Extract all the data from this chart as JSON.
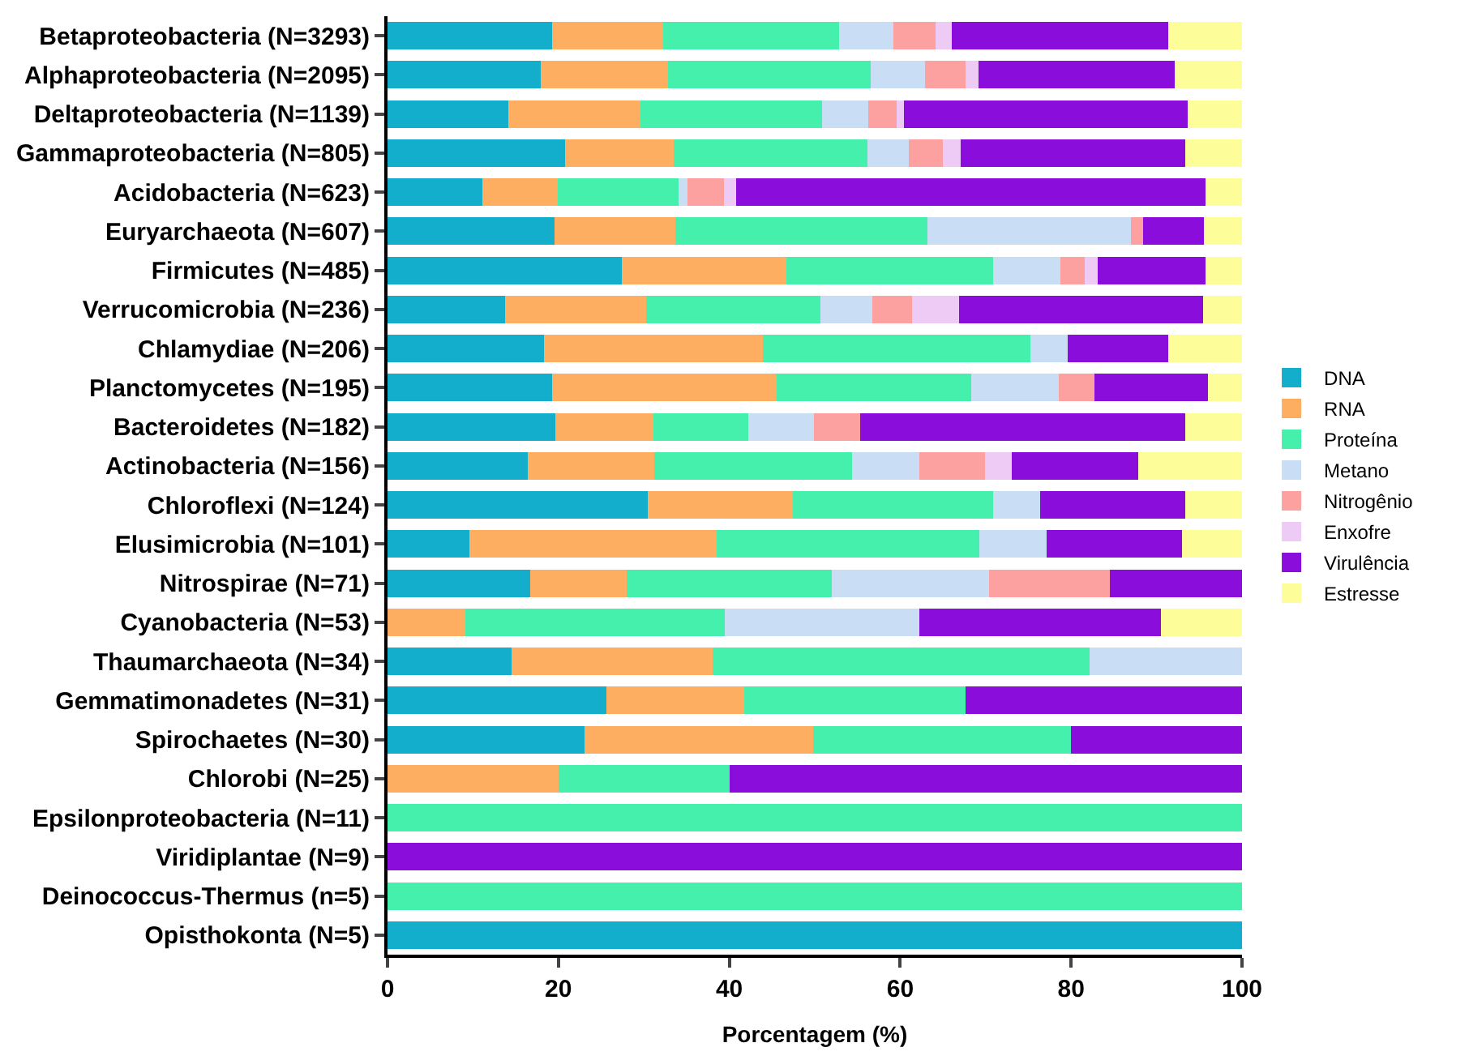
{
  "chart_data": {
    "type": "bar",
    "orientation": "horizontal",
    "stacked": true,
    "xlabel": "Porcentagem (%)",
    "categories": [
      "Betaproteobacteria (N=3293)",
      "Alphaproteobacteria (N=2095)",
      "Deltaproteobacteria (N=1139)",
      "Gammaproteobacteria (N=805)",
      "Acidobacteria (N=623)",
      "Euryarchaeota (N=607)",
      "Firmicutes (N=485)",
      "Verrucomicrobia (N=236)",
      "Chlamydiae (N=206)",
      "Planctomycetes (N=195)",
      "Bacteroidetes (N=182)",
      "Actinobacteria (N=156)",
      "Chloroflexi (N=124)",
      "Elusimicrobia (N=101)",
      "Nitrospirae (N=71)",
      "Cyanobacteria (N=53)",
      "Thaumarchaeota (N=34)",
      "Gemmatimonadetes (N=31)",
      "Spirochaetes (N=30)",
      "Chlorobi (N=25)",
      "Epsilonproteobacteria (N=11)",
      "Viridiplantae (N=9)",
      "Deinococcus-Thermus (n=5)",
      "Opisthokonta (N=5)"
    ],
    "series": [
      {
        "name": "DNA",
        "color": "#12aecc",
        "values": [
          19.3,
          17.9,
          14.1,
          20.8,
          11.1,
          19.5,
          27.4,
          13.8,
          18.3,
          19.3,
          19.6,
          16.4,
          30.5,
          9.6,
          16.7,
          0,
          14.5,
          25.6,
          23.1,
          0,
          0,
          0,
          0,
          100
        ]
      },
      {
        "name": "RNA",
        "color": "#fdae61",
        "values": [
          13.0,
          14.9,
          15.5,
          12.7,
          8.8,
          14.2,
          19.3,
          16.5,
          25.6,
          26.2,
          11.5,
          14.8,
          16.9,
          28.9,
          11.3,
          9.1,
          23.5,
          16.1,
          26.7,
          20,
          0,
          0,
          0,
          0
        ]
      },
      {
        "name": "Proteína",
        "color": "#44f0ac",
        "values": [
          20.5,
          23.7,
          21.3,
          22.7,
          14.2,
          29.5,
          24.2,
          20.4,
          31.3,
          22.8,
          11.1,
          23.2,
          23.5,
          30.8,
          24.0,
          30.4,
          44.2,
          25.9,
          30.2,
          20,
          100,
          0,
          100,
          0
        ]
      },
      {
        "name": "Metano",
        "color": "#c9ddf5",
        "values": [
          6.4,
          6.4,
          5.4,
          4.8,
          1.0,
          23.8,
          7.8,
          6.0,
          4.4,
          10.3,
          7.7,
          7.8,
          5.5,
          7.8,
          18.4,
          22.7,
          17.8,
          0,
          0,
          0,
          0,
          0,
          0,
          0
        ]
      },
      {
        "name": "Nitrogênio",
        "color": "#fda0a0",
        "values": [
          4.9,
          4.7,
          3.3,
          4.0,
          4.3,
          1.4,
          2.9,
          4.7,
          0,
          4.1,
          5.4,
          7.7,
          0,
          0,
          14.1,
          0,
          0,
          0,
          0,
          0,
          0,
          0,
          0,
          0
        ]
      },
      {
        "name": "Enxofre",
        "color": "#edcbf5",
        "values": [
          1.9,
          1.6,
          0.8,
          2.1,
          1.4,
          0,
          1.5,
          5.5,
          0,
          0,
          0,
          3.2,
          0,
          0,
          0,
          0,
          0,
          0,
          0,
          0,
          0,
          0,
          0,
          0
        ]
      },
      {
        "name": "Virulência",
        "color": "#8a0ddb",
        "values": [
          25.4,
          22.9,
          33.2,
          26.3,
          54.9,
          7.1,
          12.6,
          28.5,
          11.8,
          13.3,
          38.1,
          14.8,
          17.0,
          15.9,
          15.5,
          28.3,
          0,
          32.4,
          20.0,
          60,
          0,
          100,
          0,
          0
        ]
      },
      {
        "name": "Estresse",
        "color": "#fdfd9a",
        "values": [
          8.6,
          7.9,
          6.4,
          6.6,
          4.3,
          4.5,
          4.3,
          4.6,
          8.6,
          4.0,
          6.6,
          12.1,
          6.6,
          7.0,
          0,
          9.5,
          0,
          0,
          0,
          0,
          0,
          0,
          0,
          0
        ]
      }
    ],
    "xlim": [
      0,
      100
    ],
    "xticks": [
      0,
      20,
      40,
      60,
      80,
      100
    ],
    "legend": "right"
  }
}
